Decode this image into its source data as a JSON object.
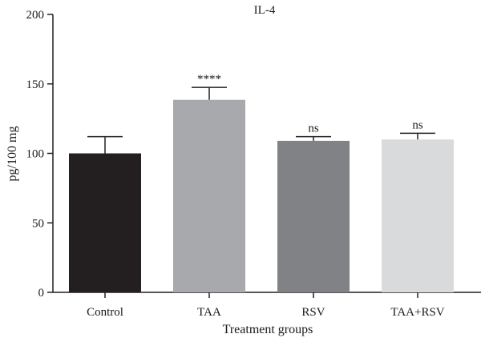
{
  "chart_data": {
    "type": "bar",
    "title": "IL-4",
    "xlabel": "Treatment groups",
    "ylabel": "pg/100 mg",
    "ylim": [
      0,
      200
    ],
    "yticks": [
      0,
      50,
      100,
      150,
      200
    ],
    "categories": [
      "Control",
      "TAA",
      "RSV",
      "TAA+RSV"
    ],
    "values": [
      100,
      138.5,
      109,
      110
    ],
    "errors": [
      12,
      9,
      3,
      4.5
    ],
    "annotations": [
      "",
      "****",
      "ns",
      "ns"
    ],
    "colors": [
      "#231f20",
      "#a7a9ac",
      "#808285",
      "#d9dadb"
    ],
    "grid": false,
    "legend": "none"
  }
}
